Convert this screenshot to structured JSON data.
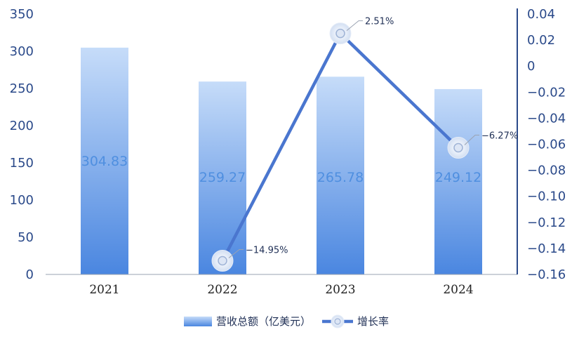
{
  "chart_data": {
    "type": "bar",
    "categories": [
      "2021",
      "2022",
      "2023",
      "2024"
    ],
    "series": [
      {
        "name": "营收总额（亿美元）",
        "type": "bar",
        "axis": "left",
        "values": [
          304.83,
          259.27,
          265.78,
          249.12
        ],
        "data_labels": [
          "304.83",
          "259.27",
          "265.78",
          "249.12"
        ]
      },
      {
        "name": "增长率",
        "type": "line",
        "axis": "right",
        "points": [
          {
            "category": "2022",
            "value": -0.1495,
            "label": "−14.95%"
          },
          {
            "category": "2023",
            "value": 0.0251,
            "label": "2.51%"
          },
          {
            "category": "2024",
            "value": -0.0627,
            "label": "−6.27%"
          }
        ]
      }
    ],
    "y_left": {
      "lim": [
        0,
        350
      ],
      "ticks": [
        "0",
        "50",
        "100",
        "150",
        "200",
        "250",
        "300",
        "350"
      ]
    },
    "y_right": {
      "lim": [
        -0.16,
        0.04
      ],
      "ticks": [
        "0.04",
        "0.02",
        "0",
        "−0.02",
        "−0.04",
        "−0.06",
        "−0.08",
        "−0.10",
        "−0.12",
        "−0.14",
        "−0.16"
      ]
    },
    "grid": false,
    "legend": "bottom-center",
    "colors": {
      "bar_top": "#c6dcf9",
      "bar_bottom": "#4a86e0",
      "line": "#4a76cf",
      "marker": "#dde6f5",
      "axis": "#2b4a8a"
    }
  }
}
